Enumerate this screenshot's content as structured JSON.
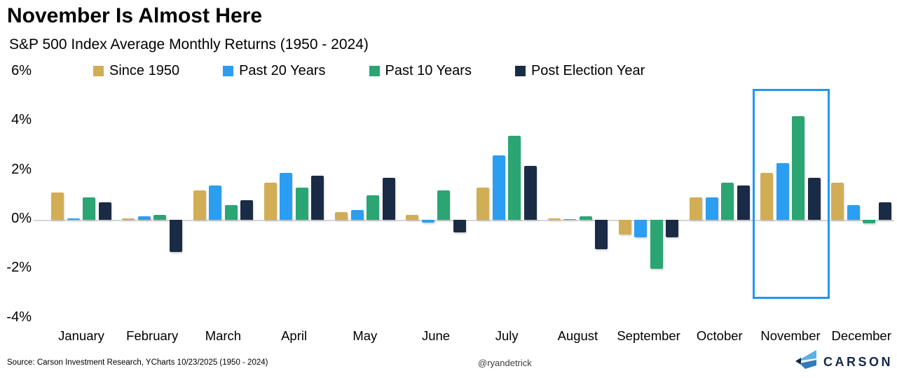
{
  "title": "November Is Almost Here",
  "subtitle": "S&P 500 Index Average Monthly Returns (1950 - 2024)",
  "y_axis": {
    "ticks": [
      {
        "label": "6%",
        "value": 6
      },
      {
        "label": "4%",
        "value": 4
      },
      {
        "label": "2%",
        "value": 2
      },
      {
        "label": "0%",
        "value": 0
      },
      {
        "label": "-2%",
        "value": -2
      },
      {
        "label": "-4%",
        "value": -4
      }
    ]
  },
  "chart_data": {
    "type": "bar",
    "categories": [
      "January",
      "February",
      "March",
      "April",
      "May",
      "June",
      "July",
      "August",
      "September",
      "October",
      "November",
      "December"
    ],
    "series": [
      {
        "name": "Since 1950",
        "color": "#d1ad55",
        "values": [
          1.1,
          0.05,
          1.2,
          1.5,
          0.3,
          0.2,
          1.3,
          0.05,
          -0.6,
          0.9,
          1.9,
          1.5
        ]
      },
      {
        "name": "Past 20 Years",
        "color": "#2b9ef2",
        "values": [
          0.05,
          0.15,
          1.4,
          1.9,
          0.4,
          -0.1,
          2.6,
          0.0,
          -0.7,
          0.9,
          2.3,
          0.6
        ]
      },
      {
        "name": "Past 10 Years",
        "color": "#2aa573",
        "values": [
          0.9,
          0.2,
          0.6,
          1.3,
          1.0,
          1.2,
          3.4,
          0.15,
          -2.0,
          1.5,
          4.2,
          -0.15
        ]
      },
      {
        "name": "Post Election Year",
        "color": "#1a2b45",
        "values": [
          0.7,
          -1.3,
          0.8,
          1.8,
          1.7,
          -0.5,
          2.2,
          -1.2,
          -0.7,
          1.4,
          1.7,
          0.7
        ]
      }
    ],
    "ylim": [
      -4,
      6
    ],
    "grid": "zero-line-only",
    "legend_position": "top",
    "highlighted_month": "November",
    "highlight_color": "#2196f3"
  },
  "footer": {
    "source": "Source: Carson Investment Research, YCharts 10/23/2025 (1950 - 2024)",
    "handle": "@ryandetrick",
    "brand": "CARSON"
  },
  "icons": {
    "brand_mark": "carson-chevron-logo"
  }
}
